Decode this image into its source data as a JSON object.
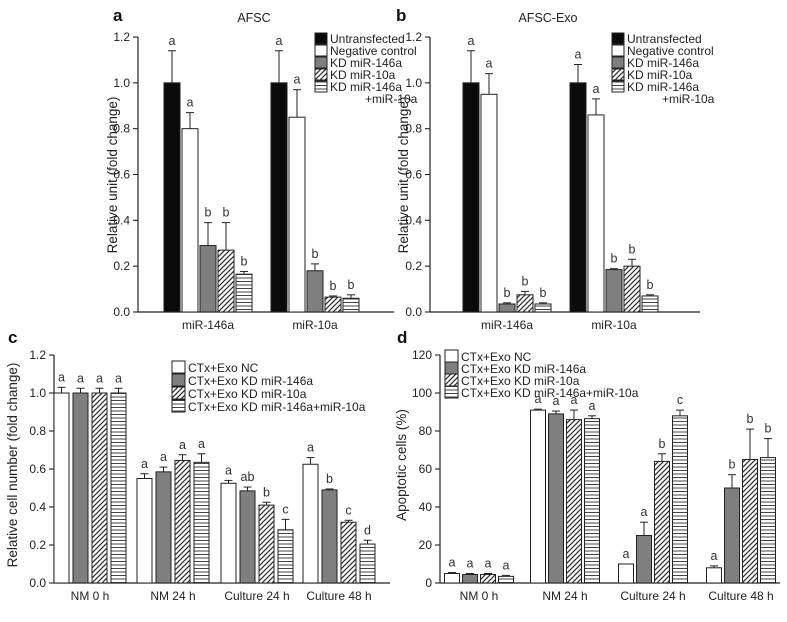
{
  "chart_data": [
    {
      "panel": "a",
      "type": "bar",
      "title": "AFSC",
      "ylabel": "Relative unit (fold change)",
      "xlabel": "",
      "ylim": [
        0,
        1.2
      ],
      "yticks": [
        "0.0",
        "0.2",
        "0.4",
        "0.6",
        "0.8",
        "1.0",
        "1.2"
      ],
      "categories": [
        "miR-146a",
        "miR-10a"
      ],
      "legend_position": "top-right",
      "series": [
        {
          "name": "Untransfected",
          "pattern": "black",
          "values": [
            1.0,
            1.0
          ],
          "errors": [
            0.14,
            0.14
          ],
          "labels": [
            "a",
            "a"
          ]
        },
        {
          "name": "Negative control",
          "pattern": "white",
          "values": [
            0.8,
            0.85
          ],
          "errors": [
            0.07,
            0.12
          ],
          "labels": [
            "a",
            "a"
          ]
        },
        {
          "name": "KD miR-146a",
          "pattern": "gray",
          "values": [
            0.29,
            0.18
          ],
          "errors": [
            0.1,
            0.03
          ],
          "labels": [
            "b",
            "b"
          ]
        },
        {
          "name": "KD miR-10a",
          "pattern": "diag",
          "values": [
            0.27,
            0.065
          ],
          "errors": [
            0.12,
            0.005
          ],
          "labels": [
            "b",
            "b"
          ]
        },
        {
          "name": "KD miR-146a",
          "name_line2": "+miR-10a",
          "pattern": "horiz",
          "values": [
            0.165,
            0.06
          ],
          "errors": [
            0.012,
            0.015
          ],
          "labels": [
            "b",
            "b"
          ]
        }
      ]
    },
    {
      "panel": "b",
      "type": "bar",
      "title": "AFSC-Exo",
      "ylabel": "Relative unit (fold change)",
      "xlabel": "",
      "ylim": [
        0,
        1.2
      ],
      "yticks": [
        "0.0",
        "0.2",
        "0.4",
        "0.6",
        "0.8",
        "1.0",
        "1.2"
      ],
      "categories": [
        "miR-146a",
        "miR-10a"
      ],
      "legend_position": "top-right",
      "series": [
        {
          "name": "Untransfected",
          "pattern": "black",
          "values": [
            1.0,
            1.0
          ],
          "errors": [
            0.14,
            0.08
          ],
          "labels": [
            "a",
            "a"
          ]
        },
        {
          "name": "Negative control",
          "pattern": "white",
          "values": [
            0.95,
            0.86
          ],
          "errors": [
            0.09,
            0.07
          ],
          "labels": [
            "a",
            "a"
          ]
        },
        {
          "name": "KD miR-146a",
          "pattern": "gray",
          "values": [
            0.035,
            0.185
          ],
          "errors": [
            0.005,
            0.004
          ],
          "labels": [
            "b",
            "b"
          ]
        },
        {
          "name": "KD miR-10a",
          "pattern": "diag",
          "values": [
            0.075,
            0.2
          ],
          "errors": [
            0.015,
            0.03
          ],
          "labels": [
            "b",
            "b"
          ]
        },
        {
          "name": "KD miR-146a",
          "name_line2": "+miR-10a",
          "pattern": "horiz",
          "values": [
            0.035,
            0.07
          ],
          "errors": [
            0.005,
            0.005
          ],
          "labels": [
            "b",
            "b"
          ]
        }
      ]
    },
    {
      "panel": "c",
      "type": "bar",
      "title": "",
      "ylabel": "Relative cell number (fold change)",
      "xlabel": "",
      "ylim": [
        0,
        1.2
      ],
      "yticks": [
        "0.0",
        "0.2",
        "0.4",
        "0.6",
        "0.8",
        "1.0",
        "1.2"
      ],
      "categories": [
        "NM 0 h",
        "NM 24 h",
        "Culture 24 h",
        "Culture 48 h"
      ],
      "legend_position": "top-right",
      "series": [
        {
          "name": "CTx+Exo NC",
          "pattern": "white",
          "values": [
            1.0,
            0.55,
            0.525,
            0.625
          ],
          "errors": [
            0.03,
            0.025,
            0.015,
            0.035
          ],
          "labels": [
            "a",
            "a",
            "a",
            "a"
          ]
        },
        {
          "name": "CTx+Exo KD miR-146a",
          "pattern": "gray",
          "values": [
            1.0,
            0.585,
            0.485,
            0.49
          ],
          "errors": [
            0.025,
            0.025,
            0.02,
            0.005
          ],
          "labels": [
            "a",
            "a",
            "ab",
            "b"
          ]
        },
        {
          "name": "CTx+Exo KD miR-10a",
          "pattern": "diag",
          "values": [
            1.0,
            0.645,
            0.41,
            0.32
          ],
          "errors": [
            0.025,
            0.03,
            0.015,
            0.01
          ],
          "labels": [
            "a",
            "a",
            "b",
            "c"
          ]
        },
        {
          "name": "CTx+Exo KD miR-146a+miR-10a",
          "pattern": "horiz",
          "values": [
            1.0,
            0.635,
            0.28,
            0.205
          ],
          "errors": [
            0.025,
            0.045,
            0.055,
            0.02
          ],
          "labels": [
            "a",
            "a",
            "c",
            "d"
          ]
        }
      ]
    },
    {
      "panel": "d",
      "type": "bar",
      "title": "",
      "ylabel": "Apoptotic cells (%)",
      "xlabel": "",
      "ylim": [
        0,
        120
      ],
      "yticks": [
        "0",
        "20",
        "40",
        "60",
        "80",
        "100",
        "120"
      ],
      "categories": [
        "NM 0 h",
        "NM 24 h",
        "Culture 24 h",
        "Culture 48 h"
      ],
      "legend_position": "top-right",
      "series": [
        {
          "name": "CTx+Exo NC",
          "pattern": "white",
          "values": [
            5,
            91,
            10,
            8
          ],
          "errors": [
            0.5,
            0.5,
            0,
            1
          ],
          "labels": [
            "a",
            "a",
            "a",
            "a"
          ]
        },
        {
          "name": "CTx+Exo KD miR-146a",
          "pattern": "gray",
          "values": [
            4.5,
            89,
            25,
            50
          ],
          "errors": [
            0.5,
            1.5,
            7,
            7
          ],
          "labels": [
            "a",
            "a",
            "a",
            "b"
          ]
        },
        {
          "name": "CTx+Exo KD miR-10a",
          "pattern": "diag",
          "values": [
            4.5,
            86,
            64,
            65
          ],
          "errors": [
            0.5,
            5,
            4,
            16
          ],
          "labels": [
            "a",
            "a",
            "b",
            "b"
          ]
        },
        {
          "name": "CTx+Exo KD miR-146a+miR-10a",
          "pattern": "horiz",
          "values": [
            3.5,
            86.5,
            88,
            66
          ],
          "errors": [
            0.5,
            1.5,
            3,
            10
          ],
          "labels": [
            "a",
            "a",
            "c",
            "b"
          ]
        }
      ]
    }
  ]
}
